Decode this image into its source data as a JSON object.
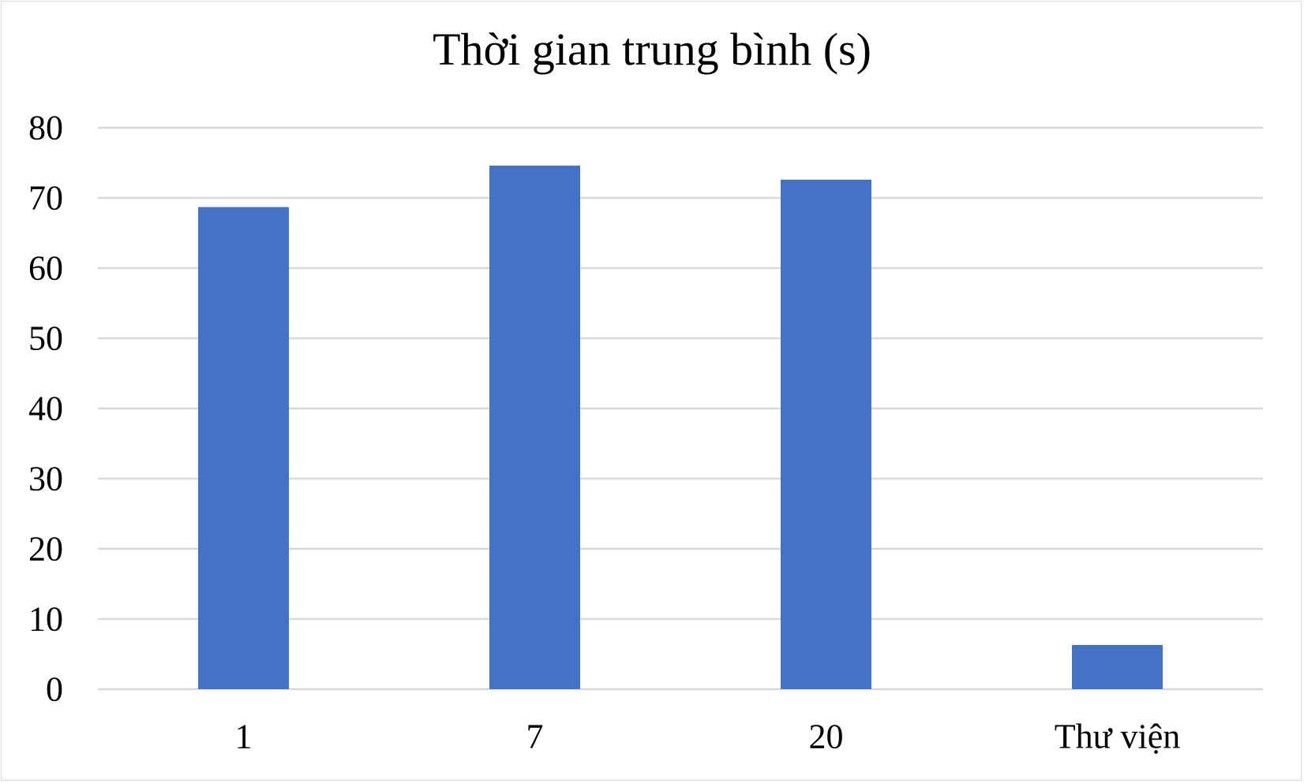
{
  "chart_data": {
    "type": "bar",
    "title": "Thời gian trung bình (s)",
    "xlabel": "",
    "ylabel": "",
    "categories": [
      "1",
      "7",
      "20",
      "Thư viện"
    ],
    "values": [
      68.7,
      74.6,
      72.6,
      6.3
    ],
    "ylim": [
      0,
      80
    ],
    "yticks": [
      "0",
      "10",
      "20",
      "30",
      "40",
      "50",
      "60",
      "70",
      "80"
    ],
    "grid": true,
    "legend": "none",
    "colors": {
      "bar": "#4472c4",
      "grid": "#d9d9d9",
      "border": "#d9d9d9",
      "text": "#000000"
    }
  }
}
